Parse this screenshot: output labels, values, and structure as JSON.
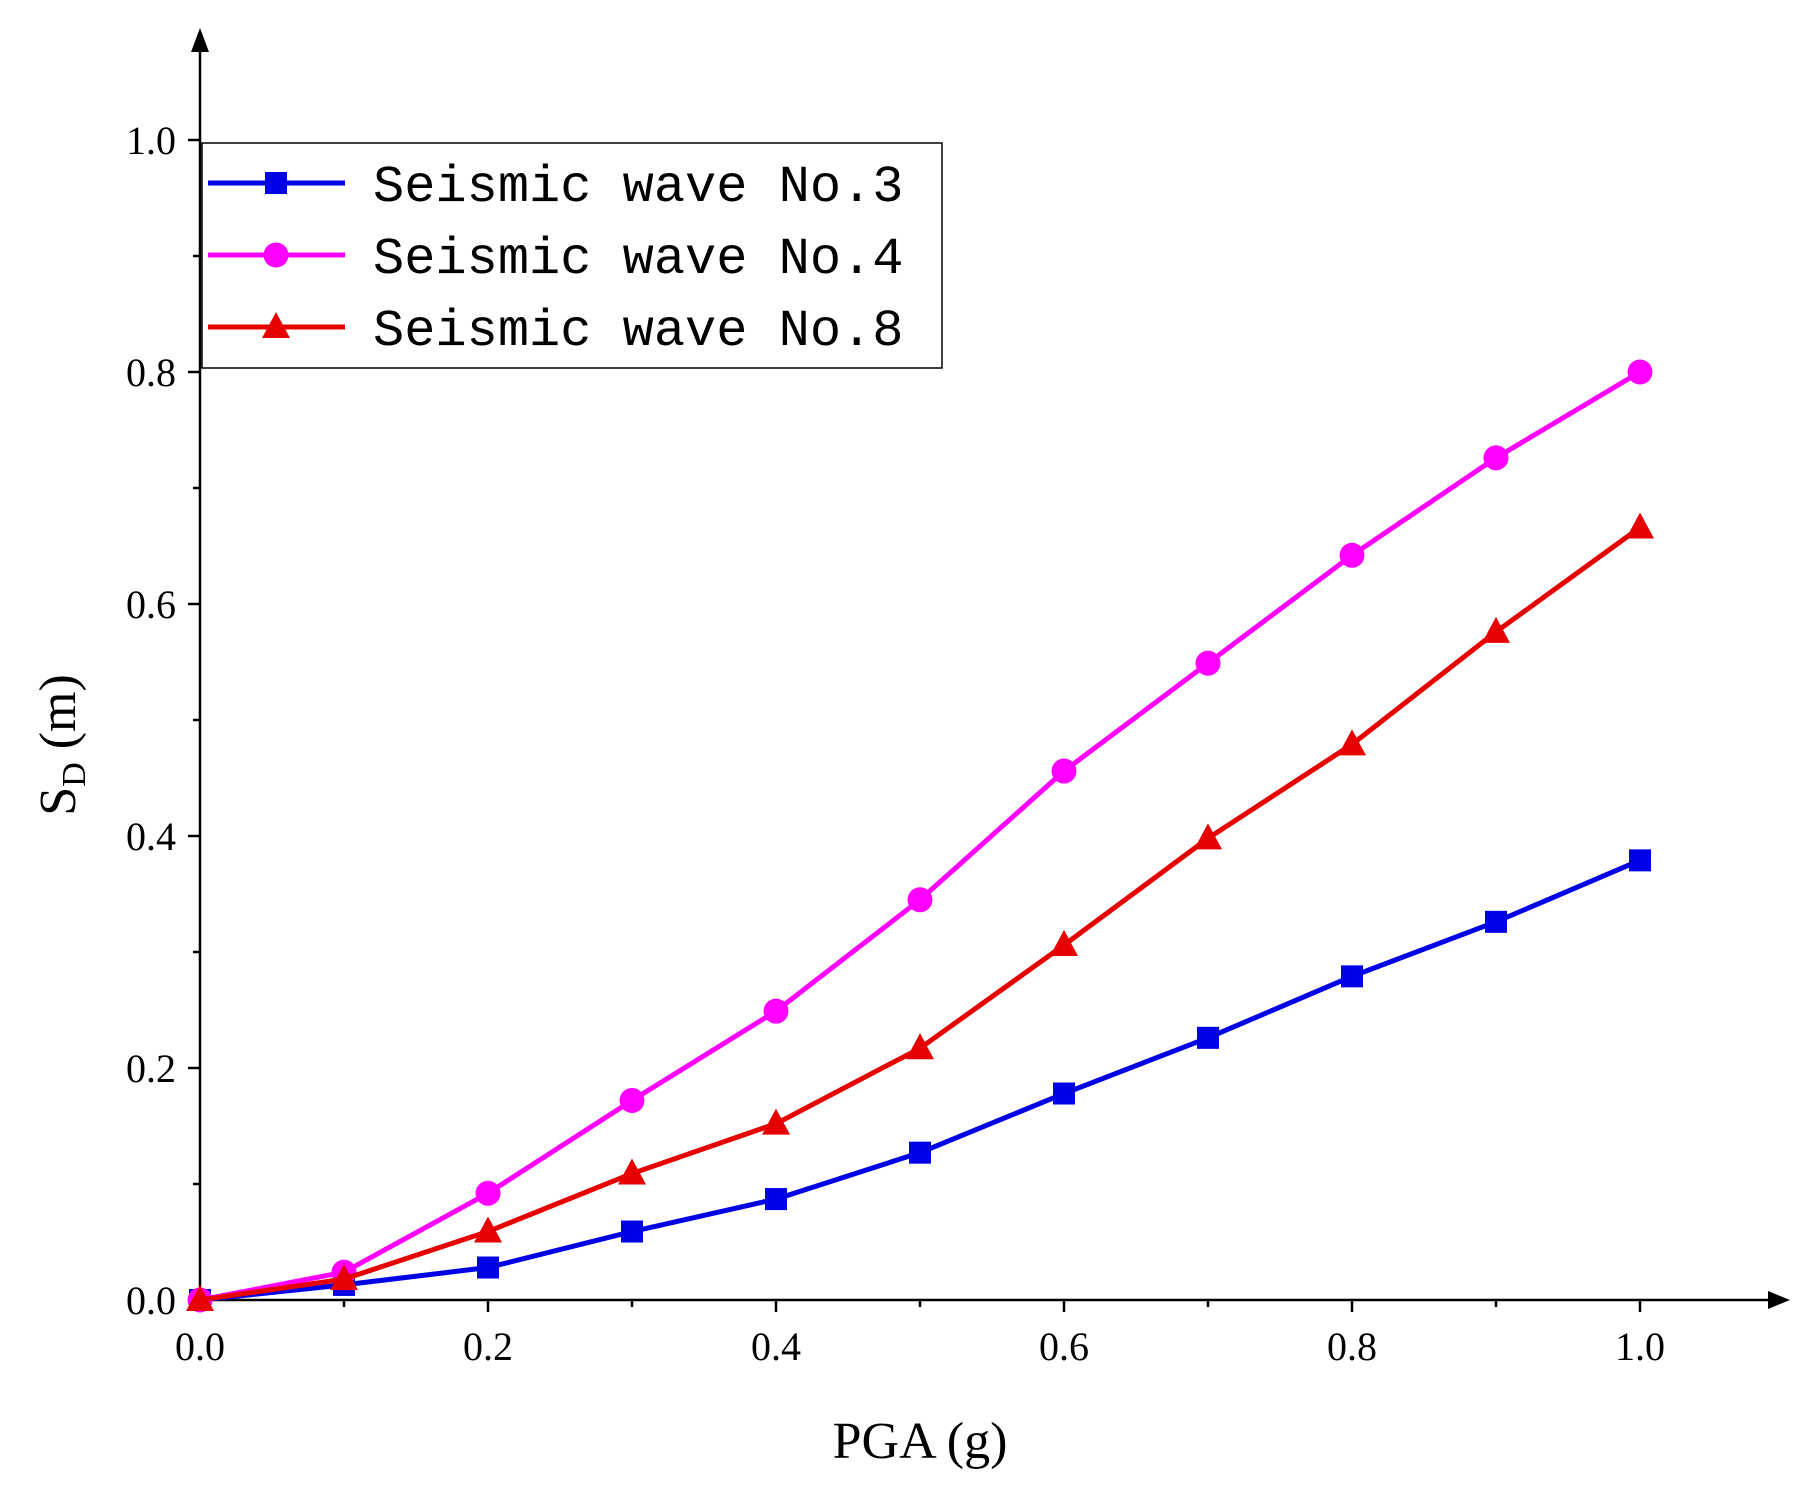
{
  "chart_data": {
    "type": "line",
    "title": "",
    "xlabel": "PGA (g)",
    "ylabel": {
      "main": "S",
      "subscript": "D",
      "unit": " (m)"
    },
    "xlim": [
      0.0,
      1.1
    ],
    "ylim": [
      0.0,
      1.1
    ],
    "xticks": [
      "0.0",
      "0.2",
      "0.4",
      "0.6",
      "0.8",
      "1.0"
    ],
    "yticks": [
      "0.0",
      "0.2",
      "0.4",
      "0.6",
      "0.8",
      "1.0"
    ],
    "grid": false,
    "legend_position": "top-left",
    "x": [
      0.0,
      0.1,
      0.2,
      0.3,
      0.4,
      0.5,
      0.6,
      0.7,
      0.8,
      0.9,
      1.0
    ],
    "series": [
      {
        "name": "Seismic wave No.3",
        "color": "#0000e6",
        "marker": "square",
        "values": [
          0.0,
          0.013,
          0.028,
          0.059,
          0.087,
          0.127,
          0.178,
          0.226,
          0.279,
          0.326,
          0.379
        ]
      },
      {
        "name": "Seismic wave No.4",
        "color": "#ff00ff",
        "marker": "circle",
        "values": [
          0.0,
          0.024,
          0.092,
          0.172,
          0.249,
          0.345,
          0.456,
          0.549,
          0.642,
          0.726,
          0.8
        ]
      },
      {
        "name": "Seismic wave No.8",
        "color": "#e60000",
        "marker": "triangle",
        "values": [
          0.0,
          0.018,
          0.059,
          0.109,
          0.152,
          0.217,
          0.306,
          0.398,
          0.479,
          0.576,
          0.666
        ]
      }
    ]
  }
}
